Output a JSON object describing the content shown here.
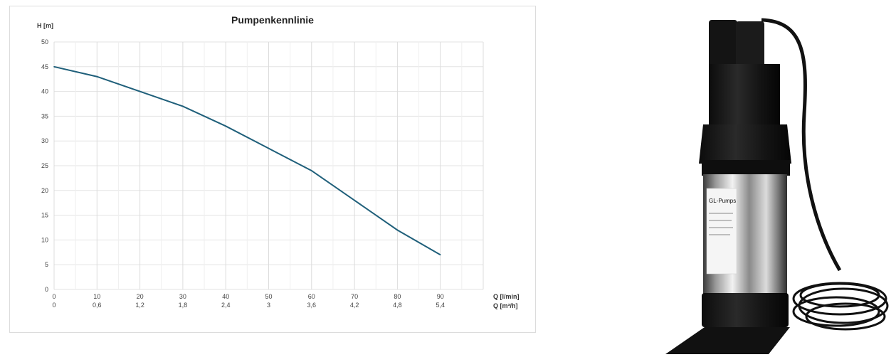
{
  "chart_data": {
    "type": "line",
    "title": "Pumpenkennlinie",
    "ylabel": "H [m]",
    "xlabel": "Q [l/min]",
    "xlabel2": "Q [m³/h]",
    "ylim": [
      0,
      50
    ],
    "xlim": [
      0,
      90
    ],
    "grid": true,
    "y_ticks": [
      "0",
      "5",
      "10",
      "15",
      "20",
      "25",
      "30",
      "35",
      "40",
      "45",
      "50"
    ],
    "x_ticks": [
      "0",
      "10",
      "20",
      "30",
      "40",
      "50",
      "60",
      "70",
      "80",
      "90"
    ],
    "x_ticks2": [
      "0",
      "0,6",
      "1,2",
      "1,8",
      "2,4",
      "3",
      "3,6",
      "4,2",
      "4,8",
      "5,4"
    ],
    "series": [
      {
        "x": [
          0,
          10,
          20,
          30,
          40,
          50,
          60,
          70,
          80,
          90
        ],
        "values": [
          45,
          43,
          40,
          37,
          33,
          28.5,
          24,
          18,
          12,
          7
        ]
      }
    ],
    "line_color": "#1f5f7a"
  },
  "product": {
    "label_brand": "GL-Pumps"
  }
}
